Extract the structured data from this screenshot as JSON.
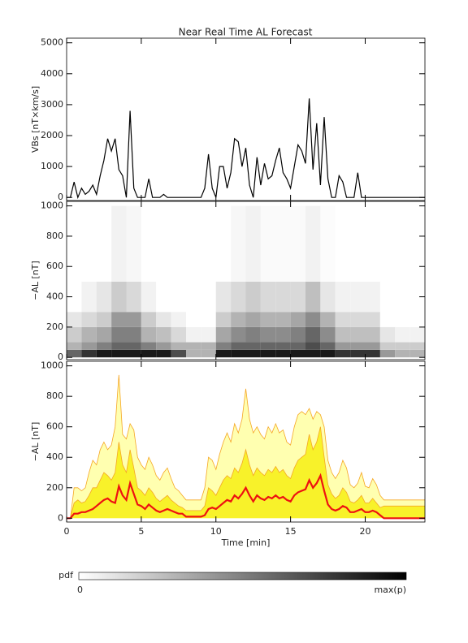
{
  "chart_data": [
    {
      "type": "line",
      "title": "Near Real Time AL Forecast",
      "y_label": "VBs [nT×km/s]",
      "color": "#000000",
      "xlim": [
        0,
        24
      ],
      "ylim": [
        -100,
        5150
      ],
      "xticks": [
        0,
        5,
        10,
        15,
        20
      ],
      "yticks": [
        0,
        1000,
        2000,
        3000,
        4000,
        5000
      ],
      "show_xtick_labels": false,
      "x": [
        0,
        0.25,
        0.5,
        0.75,
        1,
        1.25,
        1.5,
        1.75,
        2,
        2.25,
        2.5,
        2.75,
        3,
        3.25,
        3.5,
        3.75,
        4,
        4.25,
        4.5,
        4.75,
        5,
        5.25,
        5.5,
        5.75,
        6,
        6.25,
        6.5,
        6.75,
        7,
        7.25,
        7.5,
        7.75,
        8,
        8.25,
        8.5,
        8.75,
        9,
        9.25,
        9.5,
        9.75,
        10,
        10.25,
        10.5,
        10.75,
        11,
        11.25,
        11.5,
        11.75,
        12,
        12.25,
        12.5,
        12.75,
        13,
        13.25,
        13.5,
        13.75,
        14,
        14.25,
        14.5,
        14.75,
        15,
        15.25,
        15.5,
        15.75,
        16,
        16.25,
        16.5,
        16.75,
        17,
        17.25,
        17.5,
        17.75,
        18,
        18.25,
        18.5,
        18.75,
        19,
        19.25,
        19.5,
        19.75,
        20,
        20.25,
        20.5,
        20.75,
        21,
        21.25,
        21.5,
        21.75,
        22,
        22.25,
        22.5,
        22.75,
        23,
        23.25,
        23.5,
        23.75,
        24
      ],
      "values": [
        0,
        0,
        500,
        0,
        300,
        100,
        200,
        400,
        100,
        700,
        1200,
        1900,
        1500,
        1900,
        900,
        700,
        0,
        2800,
        300,
        0,
        0,
        0,
        600,
        0,
        0,
        0,
        100,
        0,
        0,
        0,
        0,
        0,
        0,
        0,
        0,
        0,
        0,
        300,
        1400,
        300,
        0,
        1000,
        1000,
        300,
        800,
        1900,
        1800,
        1000,
        1600,
        400,
        0,
        1300,
        400,
        1100,
        600,
        700,
        1200,
        1600,
        800,
        600,
        300,
        1000,
        1700,
        1500,
        1100,
        3200,
        900,
        2400,
        400,
        2600,
        600,
        0,
        0,
        700,
        500,
        0,
        0,
        0,
        800,
        0,
        0,
        0,
        0,
        0,
        0,
        0,
        0,
        0,
        0,
        0,
        0,
        0,
        0,
        0,
        0,
        0,
        0
      ]
    },
    {
      "type": "heatmap",
      "y_label": "−AL [nT]",
      "xlim": [
        0,
        24
      ],
      "ylim": [
        -15,
        1030
      ],
      "xticks": [
        0,
        5,
        10,
        15,
        20
      ],
      "yticks": [
        0,
        200,
        400,
        600,
        800,
        1000
      ],
      "show_xtick_labels": false,
      "x_bins": [
        0,
        1,
        2,
        3,
        4,
        5,
        6,
        7,
        8,
        9,
        10,
        11,
        12,
        13,
        14,
        15,
        16,
        17,
        18,
        19,
        20,
        21,
        22,
        23,
        24
      ],
      "y_bins": [
        0,
        50,
        100,
        200,
        300,
        500,
        1000
      ],
      "pdf": [
        [
          0.6,
          0.3,
          0.2,
          0.1,
          0,
          0
        ],
        [
          0.8,
          0.4,
          0.3,
          0.15,
          0.05,
          0
        ],
        [
          0.9,
          0.5,
          0.35,
          0.2,
          0.1,
          0
        ],
        [
          0.9,
          0.6,
          0.5,
          0.4,
          0.2,
          0.05
        ],
        [
          0.9,
          0.6,
          0.5,
          0.4,
          0.15,
          0.03
        ],
        [
          0.9,
          0.5,
          0.3,
          0.2,
          0.05,
          0
        ],
        [
          0.9,
          0.4,
          0.25,
          0.1,
          0,
          0
        ],
        [
          0.7,
          0.3,
          0.15,
          0.05,
          0,
          0
        ],
        [
          0.3,
          0.3,
          0.05,
          0,
          0,
          0
        ],
        [
          0.3,
          0.3,
          0.05,
          0,
          0,
          0
        ],
        [
          0.9,
          0.5,
          0.35,
          0.2,
          0.1,
          0
        ],
        [
          0.9,
          0.6,
          0.45,
          0.3,
          0.15,
          0.03
        ],
        [
          0.9,
          0.6,
          0.5,
          0.35,
          0.2,
          0.05
        ],
        [
          0.9,
          0.6,
          0.45,
          0.3,
          0.15,
          0.02
        ],
        [
          0.9,
          0.6,
          0.45,
          0.3,
          0.15,
          0.02
        ],
        [
          0.9,
          0.6,
          0.5,
          0.35,
          0.15,
          0.02
        ],
        [
          0.9,
          0.7,
          0.6,
          0.45,
          0.25,
          0.05
        ],
        [
          0.9,
          0.6,
          0.45,
          0.3,
          0.1,
          0.01
        ],
        [
          0.8,
          0.4,
          0.25,
          0.15,
          0.05,
          0
        ],
        [
          0.8,
          0.4,
          0.25,
          0.15,
          0.05,
          0
        ],
        [
          0.8,
          0.4,
          0.25,
          0.15,
          0.05,
          0
        ],
        [
          0.4,
          0.2,
          0.1,
          0,
          0,
          0
        ],
        [
          0.3,
          0.2,
          0.05,
          0,
          0,
          0
        ],
        [
          0.3,
          0.2,
          0.05,
          0,
          0,
          0
        ]
      ]
    },
    {
      "type": "band",
      "y_label": "−AL [nT]",
      "x_label": "Time [min]",
      "xlim": [
        0,
        24
      ],
      "ylim": [
        -25,
        1030
      ],
      "xticks": [
        0,
        5,
        10,
        15,
        20
      ],
      "yticks": [
        0,
        200,
        400,
        600,
        800,
        1000
      ],
      "show_xtick_labels": true,
      "x": [
        0,
        0.25,
        0.5,
        0.75,
        1,
        1.25,
        1.5,
        1.75,
        2,
        2.25,
        2.5,
        2.75,
        3,
        3.25,
        3.5,
        3.75,
        4,
        4.25,
        4.5,
        4.75,
        5,
        5.25,
        5.5,
        5.75,
        6,
        6.25,
        6.5,
        6.75,
        7,
        7.25,
        7.5,
        7.75,
        8,
        8.25,
        8.5,
        8.75,
        9,
        9.25,
        9.5,
        9.75,
        10,
        10.25,
        10.5,
        10.75,
        11,
        11.25,
        11.5,
        11.75,
        12,
        12.25,
        12.5,
        12.75,
        13,
        13.25,
        13.5,
        13.75,
        14,
        14.25,
        14.5,
        14.75,
        15,
        15.25,
        15.5,
        15.75,
        16,
        16.25,
        16.5,
        16.75,
        17,
        17.25,
        17.5,
        17.75,
        18,
        18.25,
        18.5,
        18.75,
        19,
        19.25,
        19.5,
        19.75,
        20,
        20.25,
        20.5,
        20.75,
        21,
        21.25,
        21.5,
        21.75,
        22,
        22.25,
        22.5,
        22.75,
        23,
        23.25,
        23.5,
        23.75,
        24
      ],
      "bands": [
        {
          "color": "#ffffb0",
          "edge_color": "#f5a623",
          "values": [
            0,
            0,
            200,
            200,
            180,
            200,
            300,
            380,
            350,
            450,
            500,
            450,
            480,
            600,
            940,
            550,
            520,
            620,
            580,
            400,
            350,
            320,
            400,
            350,
            280,
            250,
            300,
            330,
            260,
            200,
            180,
            150,
            120,
            120,
            120,
            120,
            120,
            200,
            400,
            380,
            320,
            420,
            500,
            560,
            500,
            620,
            560,
            650,
            850,
            650,
            560,
            600,
            550,
            520,
            600,
            560,
            620,
            560,
            580,
            500,
            480,
            600,
            680,
            700,
            680,
            720,
            650,
            700,
            680,
            600,
            380,
            300,
            260,
            300,
            380,
            330,
            220,
            200,
            230,
            300,
            210,
            200,
            260,
            220,
            150,
            120,
            120,
            120,
            120,
            120,
            120,
            120,
            120,
            120,
            120,
            120,
            120
          ]
        },
        {
          "color": "#f8f22a",
          "edge_color": "#f5a623",
          "values": [
            0,
            0,
            100,
            120,
            100,
            110,
            150,
            200,
            200,
            250,
            300,
            280,
            250,
            300,
            500,
            350,
            300,
            450,
            330,
            200,
            180,
            150,
            200,
            170,
            130,
            110,
            130,
            150,
            120,
            100,
            80,
            70,
            50,
            50,
            50,
            50,
            50,
            80,
            200,
            180,
            150,
            200,
            250,
            280,
            260,
            330,
            300,
            360,
            450,
            350,
            280,
            330,
            300,
            280,
            320,
            300,
            340,
            300,
            320,
            280,
            260,
            330,
            380,
            400,
            420,
            550,
            450,
            500,
            600,
            400,
            220,
            160,
            130,
            150,
            200,
            170,
            110,
            100,
            120,
            150,
            100,
            100,
            130,
            100,
            70,
            80,
            80,
            80,
            80,
            80,
            80,
            80,
            80,
            80,
            80,
            80,
            80
          ]
        }
      ],
      "line": {
        "color": "#ee1111",
        "values": [
          0,
          0,
          30,
          30,
          40,
          40,
          50,
          60,
          80,
          100,
          120,
          130,
          110,
          100,
          210,
          150,
          120,
          230,
          160,
          90,
          80,
          60,
          90,
          70,
          50,
          40,
          50,
          60,
          50,
          40,
          30,
          30,
          10,
          10,
          10,
          10,
          10,
          20,
          60,
          70,
          60,
          80,
          100,
          120,
          110,
          150,
          130,
          160,
          200,
          150,
          110,
          150,
          130,
          120,
          140,
          130,
          150,
          130,
          140,
          120,
          110,
          150,
          170,
          180,
          190,
          250,
          200,
          230,
          280,
          180,
          90,
          60,
          50,
          60,
          80,
          70,
          40,
          40,
          50,
          60,
          40,
          40,
          50,
          40,
          20,
          0,
          0,
          0,
          0,
          0,
          0,
          0,
          0,
          0,
          0,
          0,
          0
        ]
      }
    }
  ],
  "colorbar": {
    "label": "pdf",
    "min_label": "0",
    "max_label": "max(p)"
  }
}
